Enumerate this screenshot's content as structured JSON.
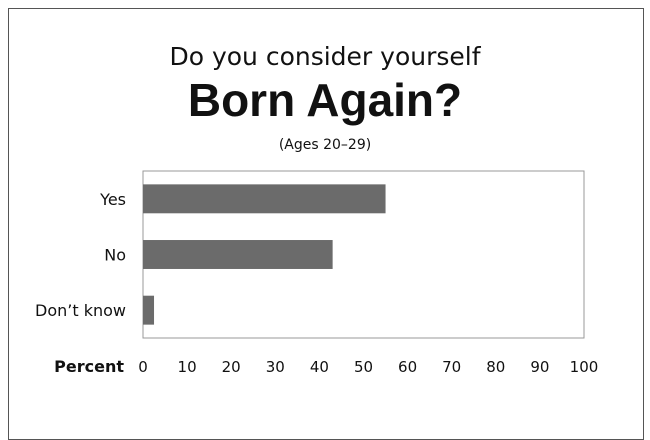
{
  "title_line1": "Do you consider yourself",
  "title_line2": "Born Again?",
  "subtitle": "(Ages 20–29)",
  "chart_data": {
    "type": "bar",
    "orientation": "horizontal",
    "categories": [
      "Yes",
      "No",
      "Don’t know"
    ],
    "values": [
      55,
      43,
      2.5
    ],
    "xlabel": "Percent",
    "xlim": [
      0,
      100
    ],
    "xticks": [
      0,
      10,
      20,
      30,
      40,
      50,
      60,
      70,
      80,
      90,
      100
    ],
    "bar_color": "#6b6b6b",
    "grid": false
  }
}
